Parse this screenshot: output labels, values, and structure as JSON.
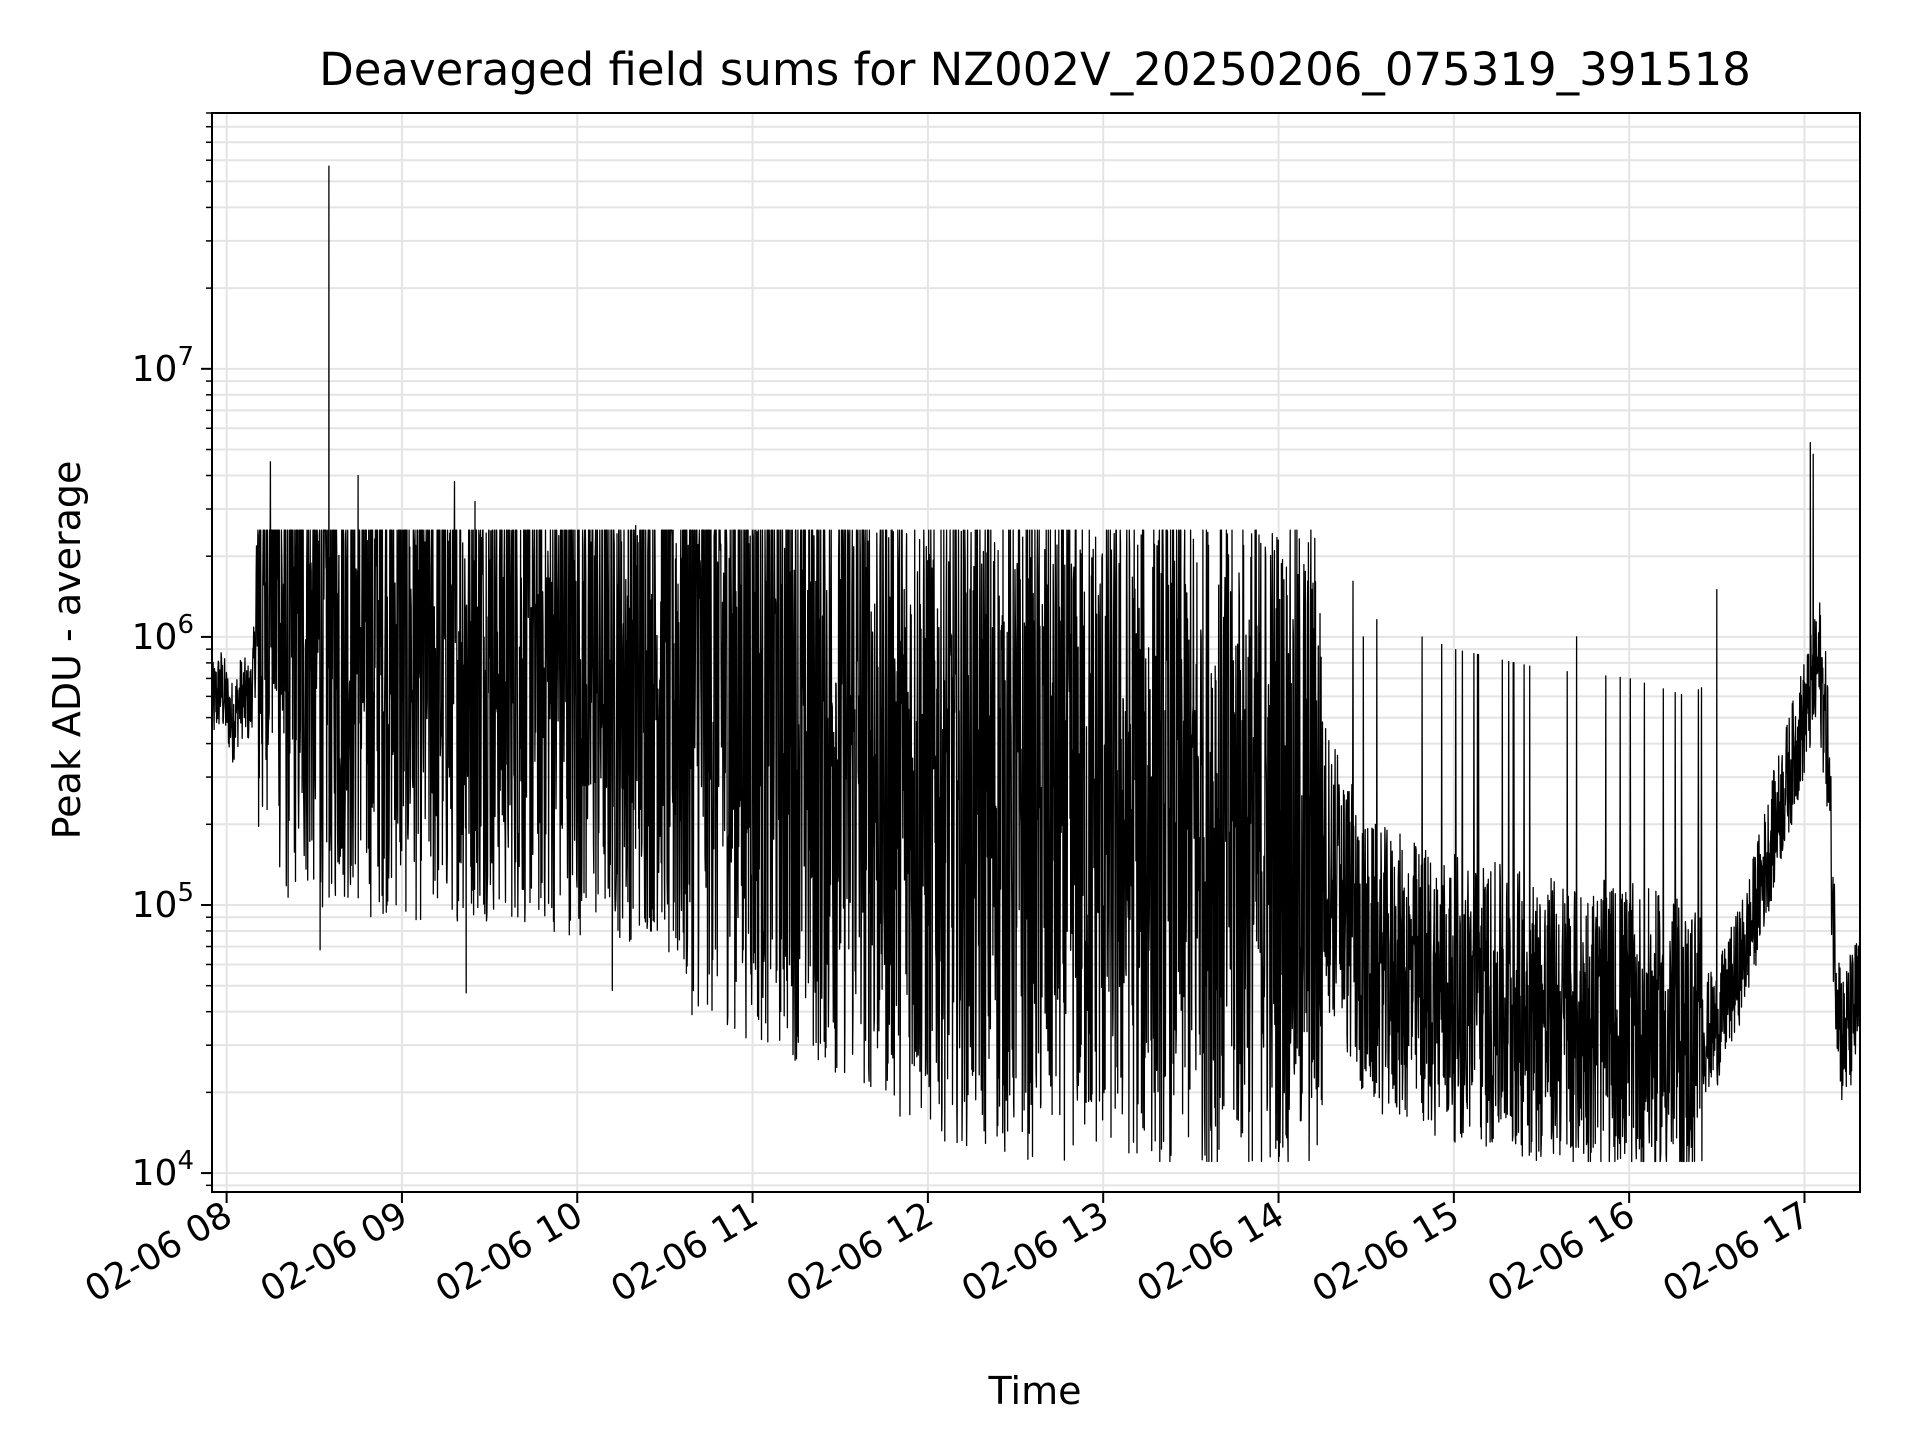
{
  "chart_data": {
    "type": "line",
    "title": "Deaveraged field sums for NZ002V_20250206_075319_391518",
    "xlabel": "Time",
    "ylabel": "Peak ADU - average",
    "yscale": "log",
    "ylim": [
      8500,
      90000000
    ],
    "xlim": [
      "02-06 07:55",
      "02-06 17:19"
    ],
    "grid": true,
    "line_color": "#000000",
    "grid_color": "#e4e4e4",
    "x_ticks": [
      {
        "t": "02-06 08:00",
        "label": "02-06 08"
      },
      {
        "t": "02-06 09:00",
        "label": "02-06 09"
      },
      {
        "t": "02-06 10:00",
        "label": "02-06 10"
      },
      {
        "t": "02-06 11:00",
        "label": "02-06 11"
      },
      {
        "t": "02-06 12:00",
        "label": "02-06 12"
      },
      {
        "t": "02-06 13:00",
        "label": "02-06 13"
      },
      {
        "t": "02-06 14:00",
        "label": "02-06 14"
      },
      {
        "t": "02-06 15:00",
        "label": "02-06 15"
      },
      {
        "t": "02-06 16:00",
        "label": "02-06 16"
      },
      {
        "t": "02-06 17:00",
        "label": "02-06 17"
      }
    ],
    "y_ticks": [
      {
        "value": 10000,
        "base": "10",
        "exp": "4"
      },
      {
        "value": 100000,
        "base": "10",
        "exp": "5"
      },
      {
        "value": 1000000,
        "base": "10",
        "exp": "6"
      },
      {
        "value": 10000000,
        "base": "10",
        "exp": "7"
      }
    ],
    "series": [
      {
        "points": [
          [
            "02-06 07:55",
            550000
          ],
          [
            "02-06 07:58",
            650000
          ],
          [
            "02-06 08:02",
            480000
          ],
          [
            "02-06 08:05",
            600000
          ],
          [
            "02-06 08:08",
            560000
          ],
          [
            "02-06 08:10",
            900000
          ],
          [
            "02-06 08:13",
            1500000
          ],
          [
            "02-06 08:15",
            3500000
          ],
          [
            "02-06 08:18",
            1200000
          ],
          [
            "02-06 08:21",
            900000
          ],
          [
            "02-06 08:24",
            1100000
          ],
          [
            "02-06 08:27",
            1000000
          ],
          [
            "02-06 08:30",
            1000000
          ],
          [
            "02-06 08:35",
            900000
          ],
          [
            "02-06 08:40",
            1000000
          ],
          [
            "02-06 08:45",
            900000
          ],
          [
            "02-06 08:50",
            850000
          ],
          [
            "02-06 08:55",
            900000
          ],
          [
            "02-06 09:00",
            850000
          ],
          [
            "02-06 09:10",
            800000
          ],
          [
            "02-06 09:20",
            850000
          ],
          [
            "02-06 09:30",
            850000
          ],
          [
            "02-06 09:40",
            800000
          ],
          [
            "02-06 09:50",
            750000
          ],
          [
            "02-06 10:00",
            750000
          ],
          [
            "02-06 10:20",
            700000
          ],
          [
            "02-06 10:30",
            750000
          ],
          [
            "02-06 10:40",
            700000
          ],
          [
            "02-06 10:50",
            650000
          ],
          [
            "02-06 11:00",
            550000
          ],
          [
            "02-06 11:20",
            450000
          ],
          [
            "02-06 11:40",
            350000
          ],
          [
            "02-06 12:00",
            250000
          ],
          [
            "02-06 12:30",
            200000
          ],
          [
            "02-06 13:00",
            200000
          ],
          [
            "02-06 13:30",
            190000
          ],
          [
            "02-06 14:00",
            180000
          ],
          [
            "02-06 14:15",
            160000
          ],
          [
            "02-06 14:30",
            60000
          ],
          [
            "02-06 15:00",
            45000
          ],
          [
            "02-06 15:30",
            38000
          ],
          [
            "02-06 16:00",
            35000
          ],
          [
            "02-06 16:20",
            30000
          ],
          [
            "02-06 16:30",
            35000
          ],
          [
            "02-06 16:40",
            70000
          ],
          [
            "02-06 16:50",
            200000
          ],
          [
            "02-06 17:00",
            500000
          ],
          [
            "02-06 17:05",
            800000
          ],
          [
            "02-06 17:08",
            400000
          ],
          [
            "02-06 17:10",
            80000
          ],
          [
            "02-06 17:13",
            30000
          ],
          [
            "02-06 17:19",
            45000
          ]
        ],
        "spikes": [
          [
            "02-06 08:35",
            57000000
          ],
          [
            "02-06 08:15",
            4500000
          ],
          [
            "02-06 08:45",
            4000000
          ],
          [
            "02-06 09:18",
            3800000
          ],
          [
            "02-06 09:25",
            3200000
          ],
          [
            "02-06 10:20",
            2600000
          ],
          [
            "02-06 17:02",
            5300000
          ],
          [
            "02-06 17:03",
            4800000
          ],
          [
            "02-06 08:32",
            68000
          ],
          [
            "02-06 09:22",
            47000
          ],
          [
            "02-06 10:12",
            48000
          ],
          [
            "02-06 12:56",
            18500
          ],
          [
            "02-06 15:40",
            12500
          ],
          [
            "02-06 15:59",
            13000
          ],
          [
            "02-06 16:30",
            1500000
          ],
          [
            "02-06 15:42",
            1000000
          ],
          [
            "02-06 14:29",
            1000000
          ]
        ]
      }
    ]
  }
}
